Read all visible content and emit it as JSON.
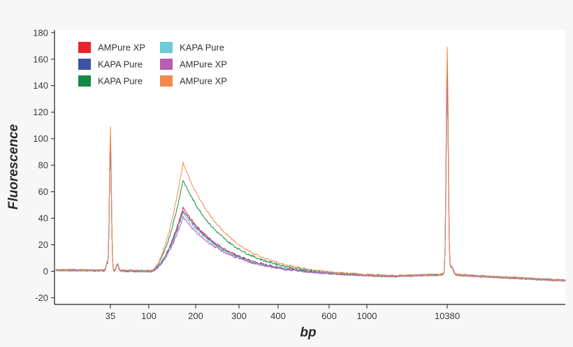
{
  "chart_data": {
    "type": "line",
    "xlabel": "bp",
    "ylabel": "Fluorescence",
    "x_scale": "categorical-log",
    "x_ticks": [
      "35",
      "100",
      "200",
      "300",
      "400",
      "600",
      "1000",
      "10380"
    ],
    "y_ticks": [
      -20,
      0,
      20,
      40,
      60,
      80,
      100,
      120,
      140,
      160,
      180
    ],
    "ylim": [
      -25,
      182
    ],
    "grid": false,
    "legend_position": "top-left",
    "series": [
      {
        "name": "AMPure XP",
        "color": "#e8252e",
        "main_peak": 51,
        "marker_low": 98,
        "marker_high": 162
      },
      {
        "name": "KAPA Pure",
        "color": "#3a54a2",
        "main_peak": 49,
        "marker_low": 97,
        "marker_high": 158
      },
      {
        "name": "KAPA Pure",
        "color": "#148a44",
        "main_peak": 72,
        "marker_low": 96,
        "marker_high": 150
      },
      {
        "name": "KAPA Pure",
        "color": "#6ccbd8",
        "main_peak": 47,
        "marker_low": 95,
        "marker_high": 140
      },
      {
        "name": "AMPure XP",
        "color": "#b85cb4",
        "main_peak": 44,
        "marker_low": 96,
        "marker_high": 145
      },
      {
        "name": "AMPure XP",
        "color": "#f28a4a",
        "main_peak": 85,
        "marker_low": 108,
        "marker_high": 171
      }
    ]
  }
}
